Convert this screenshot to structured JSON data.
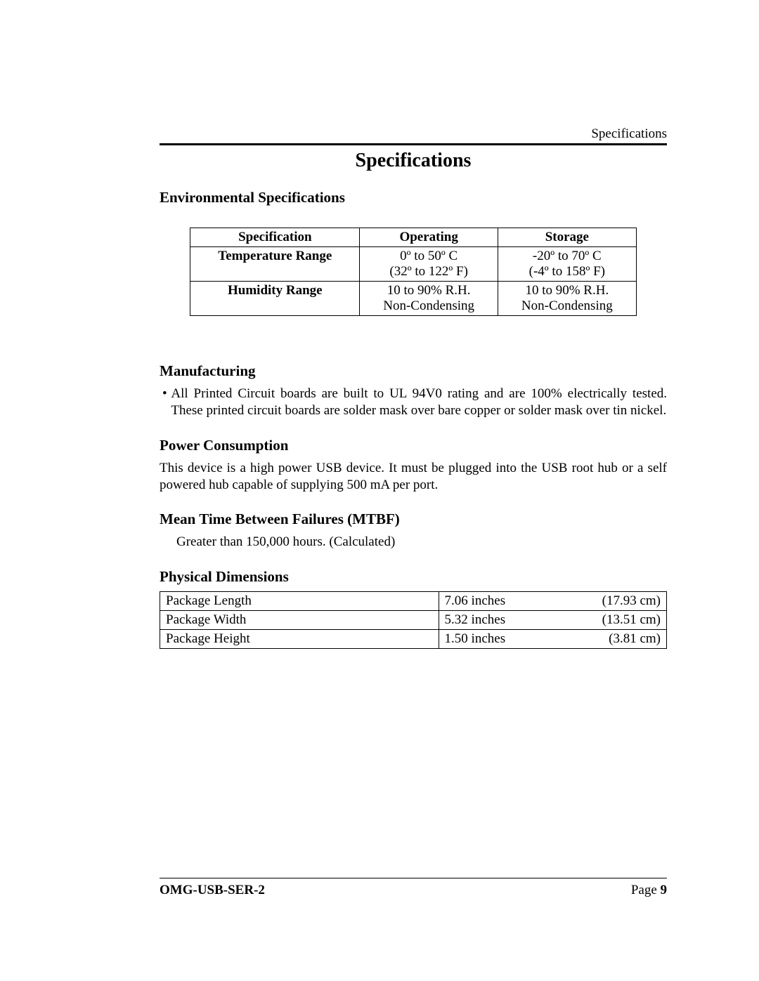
{
  "header": {
    "running_head": "Specifications"
  },
  "title": "Specifications",
  "sections": {
    "environmental": {
      "heading": "Environmental Specifications",
      "columns": [
        "Specification",
        "Operating",
        "Storage"
      ],
      "rows": [
        {
          "label": "Temperature Range",
          "operating_line1": "0º to 50º C",
          "operating_line2": "(32º to 122º F)",
          "storage_line1": "-20º to 70º C",
          "storage_line2": "(-4º to 158º F)"
        },
        {
          "label": "Humidity Range",
          "operating_line1": "10 to 90% R.H.",
          "operating_line2": "Non-Condensing",
          "storage_line1": "10 to 90% R.H.",
          "storage_line2": "Non-Condensing"
        }
      ]
    },
    "manufacturing": {
      "heading": "Manufacturing",
      "bullet": "All Printed Circuit boards are built to UL 94V0 rating and are 100% electrically tested. These printed circuit boards are solder mask over bare copper or solder mask over tin nickel."
    },
    "power": {
      "heading": "Power Consumption",
      "text": "This device is a high power USB device.  It must be plugged into the USB root hub or a self powered hub capable of supplying 500 mA per port."
    },
    "mtbf": {
      "heading": "Mean Time Between Failures (MTBF)",
      "text": "Greater than 150,000 hours. (Calculated)"
    },
    "dimensions": {
      "heading": "Physical Dimensions",
      "rows": [
        {
          "label": "Package Length",
          "inches": "7.06 inches",
          "cm": "(17.93 cm)"
        },
        {
          "label": "Package Width",
          "inches": "5.32 inches",
          "cm": "(13.51 cm)"
        },
        {
          "label": "Package Height",
          "inches": "1.50 inches",
          "cm": "(3.81 cm)"
        }
      ]
    }
  },
  "footer": {
    "doc_id": "OMG-USB-SER-2",
    "page_label": "Page ",
    "page_number": "9"
  },
  "style": {
    "page_bg": "#ffffff",
    "text_color": "#000000",
    "rule_color": "#000000",
    "title_fontsize_pt": 21,
    "subhead_fontsize_pt": 16,
    "body_fontsize_pt": 14
  }
}
